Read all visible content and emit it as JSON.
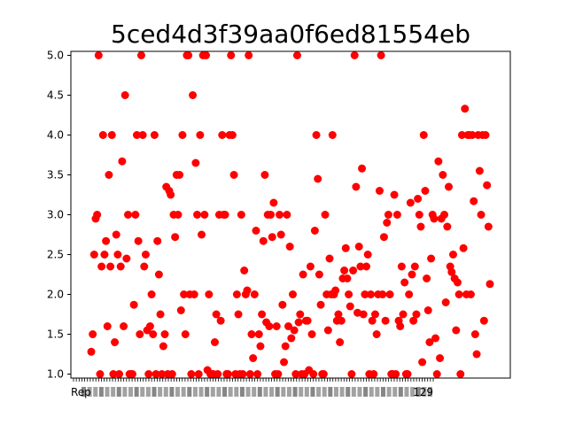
{
  "chart_data": {
    "type": "scatter",
    "title": "5ced4d3f39aa0f6ed81554eb",
    "xlabel": "",
    "ylabel": "",
    "ylim": [
      0.95,
      5.05
    ],
    "y_ticks": [
      "1.0",
      "1.5",
      "2.0",
      "2.5",
      "3.0",
      "3.5",
      "4.0",
      "4.5",
      "5.0"
    ],
    "x_first_tick_label": "Rep",
    "x_last_tick_label": "129",
    "marker_color": "#ff0000",
    "grid": false,
    "series": [
      {
        "values": [
          1.28,
          1.5,
          2.5,
          2.95,
          3.0,
          5.0,
          1.0,
          2.35,
          4.0,
          2.5,
          2.67,
          1.6,
          3.5,
          2.35,
          4.0,
          1.0,
          1.4,
          2.75,
          2.5,
          1.0,
          2.35,
          3.67,
          1.6,
          4.5,
          2.45,
          3.0,
          1.0,
          1.0,
          1.0,
          1.87,
          3.0,
          4.0,
          2.67,
          1.5,
          5.0,
          4.0,
          2.35,
          2.5,
          1.55,
          1.0,
          1.6,
          2.0,
          1.5,
          4.0,
          1.0,
          2.67,
          2.25,
          1.75,
          1.0,
          1.35,
          1.5,
          3.35,
          1.0,
          3.3,
          3.25,
          1.0,
          3.0,
          2.72,
          3.5,
          3.0,
          3.5,
          1.8,
          4.0,
          2.0,
          1.5,
          5.0,
          5.0,
          2.0,
          1.0,
          4.5,
          2.0,
          3.65,
          3.0,
          1.0,
          4.0,
          2.75,
          5.0,
          3.0,
          5.0,
          1.05,
          2.0,
          1.0,
          1.0,
          1.0,
          1.4,
          1.75,
          1.0,
          3.0,
          1.67,
          4.0,
          3.0,
          3.0,
          1.0,
          1.0,
          4.0,
          5.0,
          4.0,
          3.5,
          1.0,
          2.0,
          1.75,
          1.0,
          3.0,
          1.0,
          2.3,
          2.0,
          2.05,
          5.0,
          1.0,
          1.5,
          1.2,
          2.0,
          2.8,
          1.0,
          1.5,
          1.35,
          1.75,
          2.67,
          3.5,
          1.65,
          3.0,
          1.6,
          3.0,
          2.72,
          3.15,
          1.0,
          1.6,
          1.0,
          3.0,
          2.75,
          1.87,
          1.15,
          1.35,
          3.0,
          1.6,
          2.6,
          1.45,
          2.0,
          1.55,
          1.0,
          5.0,
          1.65,
          1.75,
          1.0,
          2.25,
          1.0,
          1.67,
          1.67,
          1.05,
          2.35,
          1.5,
          1.0,
          2.8,
          4.0,
          3.45,
          2.25,
          1.87,
          1.0,
          1.0,
          3.0,
          2.0,
          1.55,
          2.45,
          2.0,
          4.0,
          2.0,
          2.05,
          1.67,
          1.75,
          1.4,
          1.67,
          2.2,
          2.3,
          2.58,
          2.2,
          2.0,
          1.85,
          1.0,
          2.3,
          5.0,
          3.35,
          1.77,
          2.6,
          2.35,
          3.58,
          1.75,
          2.0,
          2.35,
          2.5,
          1.0,
          2.0,
          1.67,
          1.0,
          1.75,
          1.5,
          2.0,
          3.3,
          5.0,
          2.0,
          2.72,
          1.67,
          2.9,
          3.0,
          2.0,
          1.0,
          1.0,
          3.25,
          1.0,
          3.0,
          1.67,
          1.6,
          2.35,
          1.75,
          2.15,
          1.0,
          1.0,
          2.0,
          3.15,
          2.25,
          1.67,
          2.35,
          1.75,
          3.2,
          3.0,
          2.85,
          1.15,
          4.0,
          3.3,
          2.2,
          1.8,
          1.4,
          2.45,
          3.0,
          2.95,
          1.45,
          1.0,
          3.67,
          1.2,
          2.95,
          3.5,
          3.0,
          1.9,
          2.85,
          3.35,
          2.35,
          2.28,
          2.5,
          2.2,
          1.55,
          2.15,
          2.0,
          1.0,
          4.0,
          2.58,
          4.33,
          2.0,
          4.0,
          4.0,
          2.0,
          4.0,
          3.17,
          1.5,
          1.25,
          4.0,
          3.55,
          3.0,
          4.0,
          1.67,
          4.0,
          3.37,
          2.85,
          2.13
        ]
      }
    ]
  }
}
